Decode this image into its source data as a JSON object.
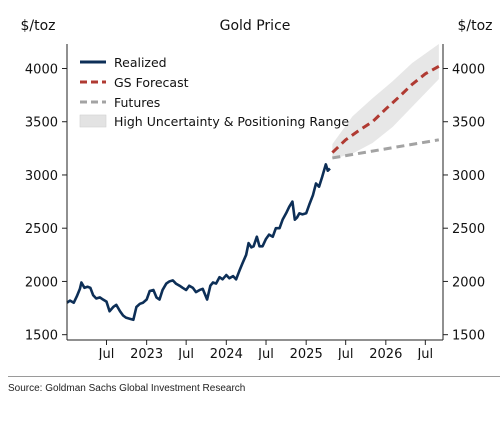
{
  "source": "Source: Goldman Sachs Global Investment Research",
  "chart_data": {
    "type": "line",
    "title": "Gold Price",
    "ylabel_left": "$/toz",
    "ylabel_right": "$/toz",
    "xlabel": "",
    "ylim": [
      1450,
      4230
    ],
    "xlim": [
      "2022-01-01",
      "2026-09-20"
    ],
    "yticks": [
      1500,
      2000,
      2500,
      3000,
      3500,
      4000
    ],
    "xticks": [
      {
        "date": "2022-07-01",
        "label": "Jul"
      },
      {
        "date": "2023-01-01",
        "label": "2023"
      },
      {
        "date": "2023-07-01",
        "label": "Jul"
      },
      {
        "date": "2024-01-01",
        "label": "2024"
      },
      {
        "date": "2024-07-01",
        "label": "Jul"
      },
      {
        "date": "2025-01-01",
        "label": "2025"
      },
      {
        "date": "2025-07-01",
        "label": "Jul"
      },
      {
        "date": "2026-01-01",
        "label": "2026"
      },
      {
        "date": "2026-07-01",
        "label": "Jul"
      }
    ],
    "grid": false,
    "legend_position": "top-left",
    "legend": [
      {
        "label": "Realized",
        "style": "solid",
        "color": "#0d2f57"
      },
      {
        "label": "GS Forecast",
        "style": "dashed",
        "color": "#b03a32"
      },
      {
        "label": "Futures",
        "style": "dashed",
        "color": "#a3a3a3"
      },
      {
        "label": "High Uncertainty & Positioning Range",
        "style": "band",
        "color": "#e3e3e3"
      }
    ],
    "series": [
      {
        "name": "Realized",
        "color": "#0d2f57",
        "style": "solid",
        "x": [
          "2022-01-01",
          "2022-01-15",
          "2022-02-01",
          "2022-02-15",
          "2022-03-01",
          "2022-03-08",
          "2022-03-22",
          "2022-04-05",
          "2022-04-18",
          "2022-05-01",
          "2022-05-15",
          "2022-06-01",
          "2022-06-15",
          "2022-07-01",
          "2022-07-15",
          "2022-08-01",
          "2022-08-15",
          "2022-09-01",
          "2022-09-15",
          "2022-09-28",
          "2022-10-15",
          "2022-11-01",
          "2022-11-15",
          "2022-12-01",
          "2022-12-15",
          "2023-01-01",
          "2023-01-15",
          "2023-02-01",
          "2023-02-15",
          "2023-03-01",
          "2023-03-15",
          "2023-04-01",
          "2023-04-15",
          "2023-05-01",
          "2023-05-15",
          "2023-06-01",
          "2023-06-15",
          "2023-07-01",
          "2023-07-15",
          "2023-08-01",
          "2023-08-15",
          "2023-09-01",
          "2023-09-15",
          "2023-10-05",
          "2023-10-20",
          "2023-11-01",
          "2023-11-15",
          "2023-12-01",
          "2023-12-15",
          "2024-01-01",
          "2024-01-15",
          "2024-02-01",
          "2024-02-15",
          "2024-03-01",
          "2024-03-15",
          "2024-04-01",
          "2024-04-12",
          "2024-04-25",
          "2024-05-05",
          "2024-05-20",
          "2024-06-01",
          "2024-06-15",
          "2024-07-01",
          "2024-07-15",
          "2024-08-01",
          "2024-08-15",
          "2024-09-01",
          "2024-09-15",
          "2024-10-01",
          "2024-10-15",
          "2024-10-30",
          "2024-11-10",
          "2024-11-20",
          "2024-12-01",
          "2024-12-15",
          "2025-01-01",
          "2025-01-15",
          "2025-02-01",
          "2025-02-15",
          "2025-03-01",
          "2025-03-15",
          "2025-04-01",
          "2025-04-10",
          "2025-04-20"
        ],
        "values": [
          1800,
          1820,
          1800,
          1860,
          1930,
          1990,
          1940,
          1950,
          1940,
          1870,
          1840,
          1850,
          1830,
          1810,
          1720,
          1760,
          1780,
          1720,
          1680,
          1660,
          1650,
          1640,
          1760,
          1790,
          1800,
          1830,
          1910,
          1920,
          1850,
          1830,
          1920,
          1980,
          2000,
          2010,
          1980,
          1960,
          1940,
          1920,
          1960,
          1940,
          1900,
          1920,
          1930,
          1830,
          1960,
          1990,
          1980,
          2040,
          2020,
          2060,
          2030,
          2050,
          2020,
          2100,
          2170,
          2250,
          2360,
          2320,
          2330,
          2420,
          2330,
          2330,
          2400,
          2440,
          2420,
          2500,
          2500,
          2580,
          2640,
          2700,
          2750,
          2580,
          2600,
          2640,
          2630,
          2640,
          2720,
          2810,
          2920,
          2890,
          2980,
          3100,
          3040,
          3060
        ]
      },
      {
        "name": "GS Forecast",
        "color": "#b03a32",
        "style": "dashed",
        "x": [
          "2025-05-01",
          "2025-07-01",
          "2025-09-01",
          "2025-11-01",
          "2026-01-01",
          "2026-03-01",
          "2026-05-01",
          "2026-07-01",
          "2026-09-01"
        ],
        "values": [
          3210,
          3330,
          3420,
          3500,
          3620,
          3730,
          3850,
          3950,
          4020
        ]
      },
      {
        "name": "Futures",
        "color": "#a3a3a3",
        "style": "dashed",
        "x": [
          "2025-05-01",
          "2026-09-01"
        ],
        "values": [
          3160,
          3330
        ]
      }
    ],
    "band": {
      "name": "High Uncertainty & Positioning Range",
      "color": "#e3e3e3",
      "x": [
        "2025-05-01",
        "2025-08-01",
        "2025-11-01",
        "2026-02-01",
        "2026-05-01",
        "2026-09-01"
      ],
      "lower": [
        3150,
        3200,
        3300,
        3450,
        3640,
        3900
      ],
      "upper": [
        3290,
        3550,
        3720,
        3880,
        4050,
        4230
      ]
    }
  }
}
